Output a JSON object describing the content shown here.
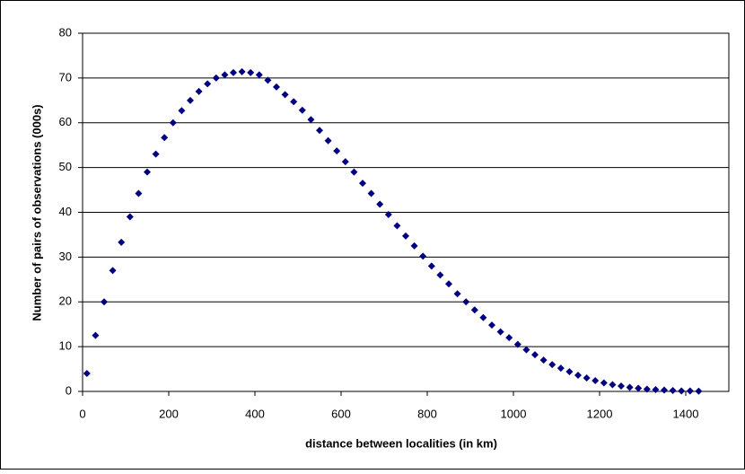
{
  "chart_data": {
    "type": "scatter",
    "x_label": "distance between localities (in km)",
    "y_label": "Number of pairs of observations (000s)",
    "x": [
      10,
      30,
      50,
      70,
      90,
      110,
      130,
      150,
      170,
      190,
      210,
      230,
      250,
      270,
      290,
      310,
      330,
      350,
      370,
      390,
      410,
      430,
      450,
      470,
      490,
      510,
      530,
      550,
      570,
      590,
      610,
      630,
      650,
      670,
      690,
      710,
      730,
      750,
      770,
      790,
      810,
      830,
      850,
      870,
      890,
      910,
      930,
      950,
      970,
      990,
      1010,
      1030,
      1050,
      1070,
      1090,
      1110,
      1130,
      1150,
      1170,
      1190,
      1210,
      1230,
      1250,
      1270,
      1290,
      1310,
      1330,
      1350,
      1370,
      1390,
      1410,
      1430
    ],
    "values": [
      4,
      12.5,
      20,
      27,
      33.3,
      39,
      44.2,
      49,
      53,
      56.7,
      60,
      62.7,
      65,
      67,
      68.7,
      70,
      70.7,
      71.2,
      71.4,
      71.2,
      70.7,
      69.5,
      68,
      66.3,
      64.7,
      62.8,
      60.7,
      58.3,
      56,
      53.7,
      51.3,
      49,
      46.5,
      44.2,
      41.8,
      39.5,
      37,
      34.7,
      32.5,
      30.2,
      28,
      26,
      24,
      21.8,
      20,
      18.2,
      16.5,
      14.8,
      13.3,
      12,
      10.5,
      9.3,
      8.2,
      7,
      6,
      5.2,
      4.4,
      3.6,
      3,
      2.4,
      1.9,
      1.5,
      1.2,
      0.9,
      0.7,
      0.5,
      0.4,
      0.3,
      0.2,
      0.1,
      0.1,
      0.05
    ],
    "color": "#000080",
    "xlim": [
      0,
      1500
    ],
    "xticks": [
      0,
      200,
      400,
      600,
      800,
      1000,
      1200,
      1400
    ],
    "ylim": [
      0,
      80
    ],
    "yticks": [
      0,
      10,
      20,
      30,
      40,
      50,
      60,
      70,
      80
    ],
    "grid": true
  }
}
